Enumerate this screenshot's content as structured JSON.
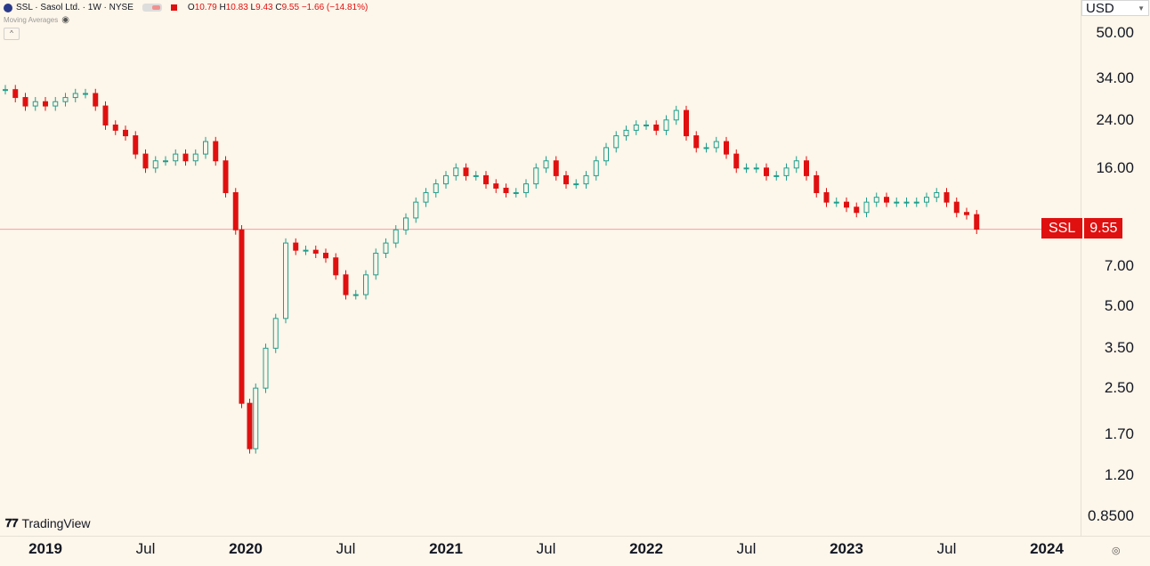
{
  "header": {
    "title": "SSL · Sasol Ltd. · 1W · NYSE",
    "ohlc": {
      "o_label": "O",
      "o": "10.79",
      "h_label": "H",
      "h": "10.83",
      "l_label": "L",
      "l": "9.43",
      "c_label": "C",
      "c": "9.55",
      "change": "−1.66 (−14.81%)"
    },
    "indicator": "Moving Averages",
    "collapse_glyph": "^"
  },
  "currency": "USD",
  "price_tag": {
    "symbol": "SSL",
    "value": "9.55"
  },
  "brand": "TradingView",
  "colors": {
    "up": "#1f9e8c",
    "down": "#e01010",
    "background": "#fdf6ea",
    "price_line": "#f2a0a0"
  },
  "chart_data": {
    "type": "candlestick",
    "title": "",
    "scale": "log",
    "ylim": [
      0.72,
      66
    ],
    "y_ticks": [
      "50.00",
      "34.00",
      "24.00",
      "16.00",
      "7.00",
      "5.00",
      "3.50",
      "2.50",
      "1.70",
      "1.20",
      "0.8500"
    ],
    "x_ticks": [
      "2019",
      "Jul",
      "2020",
      "Jul",
      "2021",
      "Jul",
      "2022",
      "Jul",
      "2023",
      "Jul",
      "2024"
    ],
    "last_price": 9.55,
    "weekly_close": [
      [
        2019.0,
        31
      ],
      [
        2019.05,
        29
      ],
      [
        2019.1,
        27
      ],
      [
        2019.15,
        28
      ],
      [
        2019.2,
        27
      ],
      [
        2019.25,
        28
      ],
      [
        2019.3,
        29
      ],
      [
        2019.35,
        30
      ],
      [
        2019.4,
        30
      ],
      [
        2019.45,
        27
      ],
      [
        2019.5,
        23
      ],
      [
        2019.55,
        22
      ],
      [
        2019.6,
        21
      ],
      [
        2019.65,
        18
      ],
      [
        2019.7,
        16
      ],
      [
        2019.75,
        17
      ],
      [
        2019.8,
        17
      ],
      [
        2019.85,
        18
      ],
      [
        2019.9,
        17
      ],
      [
        2019.95,
        18
      ],
      [
        2020.0,
        20
      ],
      [
        2020.05,
        17
      ],
      [
        2020.1,
        13
      ],
      [
        2020.15,
        9.5
      ],
      [
        2020.18,
        2.2
      ],
      [
        2020.22,
        1.5
      ],
      [
        2020.25,
        2.5
      ],
      [
        2020.3,
        3.5
      ],
      [
        2020.35,
        4.5
      ],
      [
        2020.4,
        8.5
      ],
      [
        2020.45,
        8
      ],
      [
        2020.5,
        8
      ],
      [
        2020.55,
        7.8
      ],
      [
        2020.6,
        7.5
      ],
      [
        2020.65,
        6.5
      ],
      [
        2020.7,
        5.5
      ],
      [
        2020.75,
        5.5
      ],
      [
        2020.8,
        6.5
      ],
      [
        2020.85,
        7.8
      ],
      [
        2020.9,
        8.5
      ],
      [
        2020.95,
        9.5
      ],
      [
        2021.0,
        10.5
      ],
      [
        2021.05,
        12
      ],
      [
        2021.1,
        13
      ],
      [
        2021.15,
        14
      ],
      [
        2021.2,
        15
      ],
      [
        2021.25,
        16
      ],
      [
        2021.3,
        15
      ],
      [
        2021.35,
        15
      ],
      [
        2021.4,
        14
      ],
      [
        2021.45,
        13.5
      ],
      [
        2021.5,
        13
      ],
      [
        2021.55,
        13
      ],
      [
        2021.6,
        14
      ],
      [
        2021.65,
        16
      ],
      [
        2021.7,
        17
      ],
      [
        2021.75,
        15
      ],
      [
        2021.8,
        14
      ],
      [
        2021.85,
        14
      ],
      [
        2021.9,
        15
      ],
      [
        2021.95,
        17
      ],
      [
        2022.0,
        19
      ],
      [
        2022.05,
        21
      ],
      [
        2022.1,
        22
      ],
      [
        2022.15,
        23
      ],
      [
        2022.2,
        23
      ],
      [
        2022.25,
        22
      ],
      [
        2022.3,
        24
      ],
      [
        2022.35,
        26
      ],
      [
        2022.4,
        21
      ],
      [
        2022.45,
        19
      ],
      [
        2022.5,
        19
      ],
      [
        2022.55,
        20
      ],
      [
        2022.6,
        18
      ],
      [
        2022.65,
        16
      ],
      [
        2022.7,
        16
      ],
      [
        2022.75,
        16
      ],
      [
        2022.8,
        15
      ],
      [
        2022.85,
        15
      ],
      [
        2022.9,
        16
      ],
      [
        2022.95,
        17
      ],
      [
        2023.0,
        15
      ],
      [
        2023.05,
        13
      ],
      [
        2023.1,
        12
      ],
      [
        2023.15,
        12
      ],
      [
        2023.2,
        11.5
      ],
      [
        2023.25,
        11
      ],
      [
        2023.3,
        12
      ],
      [
        2023.35,
        12.5
      ],
      [
        2023.4,
        12
      ],
      [
        2023.45,
        12
      ],
      [
        2023.5,
        12
      ],
      [
        2023.55,
        12
      ],
      [
        2023.6,
        12.5
      ],
      [
        2023.65,
        13
      ],
      [
        2023.7,
        12
      ],
      [
        2023.75,
        11
      ],
      [
        2023.8,
        10.8
      ],
      [
        2023.85,
        9.55
      ]
    ]
  }
}
